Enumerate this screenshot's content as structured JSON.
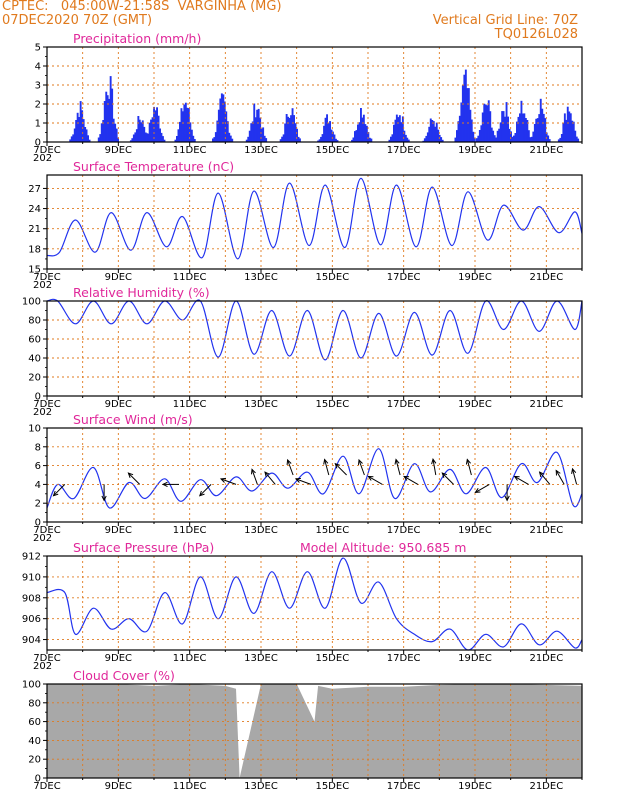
{
  "header": {
    "line1_left": "CPTEC:   045:00W-21:58S  VARGINHA (MG)",
    "line2_left": "07DEC2020 70Z (GMT)",
    "line1_right": "Vertical Grid Line: 70Z",
    "line2_right": "TQ0126L028"
  },
  "colors": {
    "series": "#2233ee",
    "title": "#e0289a",
    "header": "#e07a1e",
    "grid": "#e07a1e",
    "cloud": "#a8a8a8"
  },
  "x_dates": [
    "7DEC",
    "9DEC",
    "11DEC",
    "13DEC",
    "15DEC",
    "17DEC",
    "19DEC",
    "21DEC"
  ],
  "x_axis_label": "",
  "x_axis_stub": "202",
  "chart_data": [
    {
      "id": "precip",
      "type": "bar",
      "title": "Precipitation (mm/h)",
      "ylim": [
        0,
        5
      ],
      "yticks": [
        0,
        1,
        2,
        3,
        4,
        5
      ],
      "x_days": [
        0,
        15
      ],
      "note": "hourly bars; values estimated from figure",
      "episodes": [
        {
          "day": 0.9,
          "peak": 2.3
        },
        {
          "day": 1.7,
          "peak": 4.0
        },
        {
          "day": 2.6,
          "peak": 1.6
        },
        {
          "day": 3.0,
          "peak": 2.3
        },
        {
          "day": 3.85,
          "peak": 2.7
        },
        {
          "day": 4.9,
          "peak": 2.7
        },
        {
          "day": 5.85,
          "peak": 2.4
        },
        {
          "day": 6.8,
          "peak": 2.3
        },
        {
          "day": 7.85,
          "peak": 1.6
        },
        {
          "day": 8.8,
          "peak": 2.2
        },
        {
          "day": 9.85,
          "peak": 2.0
        },
        {
          "day": 10.8,
          "peak": 1.5
        },
        {
          "day": 11.7,
          "peak": 4.0
        },
        {
          "day": 12.3,
          "peak": 2.6
        },
        {
          "day": 12.8,
          "peak": 2.4
        },
        {
          "day": 13.3,
          "peak": 2.4
        },
        {
          "day": 13.8,
          "peak": 2.6
        },
        {
          "day": 14.6,
          "peak": 2.4
        }
      ]
    },
    {
      "id": "temp",
      "type": "line",
      "title": "Surface Temperature (nC)",
      "ylim": [
        15,
        29
      ],
      "yticks": [
        15,
        18,
        21,
        24,
        27
      ],
      "x": [
        0,
        0.35,
        0.8,
        1.35,
        1.8,
        2.35,
        2.8,
        3.35,
        3.8,
        4.35,
        4.8,
        5.35,
        5.8,
        6.35,
        6.8,
        7.35,
        7.8,
        8.35,
        8.8,
        9.35,
        9.8,
        10.35,
        10.8,
        11.35,
        11.8,
        12.35,
        12.8,
        13.35,
        13.8,
        14.35,
        14.8,
        15
      ],
      "values": [
        17,
        17.5,
        22.3,
        17.5,
        23.4,
        17.8,
        23.4,
        18.3,
        22.8,
        16.7,
        26.3,
        16.5,
        26.6,
        18.2,
        27.8,
        18.5,
        27.5,
        18.2,
        28.5,
        18.6,
        27.5,
        18.3,
        27.2,
        18.5,
        26.5,
        19.3,
        24.5,
        20.8,
        24.3,
        20.4,
        23.5,
        20.3
      ]
    },
    {
      "id": "rh",
      "type": "line",
      "title": "Relative Humidity (%)",
      "ylim": [
        0,
        100
      ],
      "yticks": [
        0,
        20,
        40,
        60,
        80,
        100
      ],
      "x": [
        0,
        0.3,
        0.8,
        1.3,
        1.8,
        2.3,
        2.8,
        3.3,
        3.8,
        4.3,
        4.8,
        5.3,
        5.8,
        6.3,
        6.8,
        7.3,
        7.8,
        8.3,
        8.8,
        9.3,
        9.8,
        10.3,
        10.8,
        11.3,
        11.8,
        12.3,
        12.8,
        13.3,
        13.8,
        14.3,
        14.8,
        15
      ],
      "values": [
        100,
        100,
        76,
        100,
        76,
        100,
        76,
        100,
        80,
        100,
        41,
        100,
        44,
        90,
        42,
        90,
        38,
        90,
        40,
        87,
        42,
        88,
        43,
        90,
        45,
        100,
        70,
        100,
        68,
        100,
        70,
        100
      ]
    },
    {
      "id": "wind",
      "type": "line",
      "title": "Surface Wind (m/s)",
      "ylim": [
        0,
        10
      ],
      "yticks": [
        0,
        2,
        4,
        6,
        8,
        10
      ],
      "x": [
        0,
        0.3,
        0.75,
        1.3,
        1.75,
        2.3,
        2.75,
        3.3,
        3.75,
        4.3,
        4.75,
        5.3,
        5.75,
        6.3,
        6.75,
        7.3,
        7.75,
        8.3,
        8.75,
        9.3,
        9.75,
        10.3,
        10.75,
        11.3,
        11.75,
        12.3,
        12.75,
        13.3,
        13.75,
        14.3,
        14.75,
        15
      ],
      "values": [
        1.5,
        4,
        2.5,
        5.8,
        1.5,
        4.2,
        2.5,
        4.6,
        2.2,
        4.5,
        2.8,
        4.8,
        3.3,
        5.2,
        3.6,
        5.3,
        3.0,
        7.0,
        3.0,
        7.8,
        2.5,
        6.2,
        3.2,
        5.6,
        3.0,
        5.8,
        2.6,
        6.2,
        4.2,
        7.4,
        1.8,
        3.0
      ],
      "arrows": [
        {
          "day": 0.5,
          "angle": 135,
          "len": 4
        },
        {
          "day": 1.6,
          "angle": 90,
          "len": 4
        },
        {
          "day": 2.6,
          "angle": 225,
          "len": 4
        },
        {
          "day": 3.7,
          "angle": 180,
          "len": 4
        },
        {
          "day": 4.6,
          "angle": 135,
          "len": 4
        },
        {
          "day": 5.3,
          "angle": 200,
          "len": 4
        },
        {
          "day": 5.9,
          "angle": 250,
          "len": 4
        },
        {
          "day": 6.4,
          "angle": 230,
          "len": 4
        },
        {
          "day": 6.9,
          "angle": 250,
          "len": 5
        },
        {
          "day": 7.4,
          "angle": 200,
          "len": 4
        },
        {
          "day": 7.9,
          "angle": 255,
          "len": 5
        },
        {
          "day": 8.4,
          "angle": 225,
          "len": 5
        },
        {
          "day": 8.9,
          "angle": 250,
          "len": 5
        },
        {
          "day": 9.4,
          "angle": 210,
          "len": 4
        },
        {
          "day": 9.9,
          "angle": 255,
          "len": 5
        },
        {
          "day": 10.4,
          "angle": 210,
          "len": 4
        },
        {
          "day": 10.9,
          "angle": 260,
          "len": 5
        },
        {
          "day": 11.4,
          "angle": 225,
          "len": 4
        },
        {
          "day": 11.9,
          "angle": 255,
          "len": 5
        },
        {
          "day": 12.4,
          "angle": 150,
          "len": 4
        },
        {
          "day": 12.9,
          "angle": 90,
          "len": 4
        },
        {
          "day": 13.5,
          "angle": 210,
          "len": 4
        },
        {
          "day": 14.1,
          "angle": 230,
          "len": 4
        },
        {
          "day": 14.5,
          "angle": 240,
          "len": 4
        },
        {
          "day": 14.85,
          "angle": 255,
          "len": 4
        }
      ]
    },
    {
      "id": "pressure",
      "type": "line",
      "title": "Surface Pressure (hPa)",
      "annotation": "Model Altitude: 950.685 m",
      "ylim": [
        903,
        912
      ],
      "yticks": [
        904,
        906,
        908,
        910,
        912
      ],
      "x": [
        0,
        0.5,
        0.8,
        1.3,
        1.8,
        2.3,
        2.8,
        3.3,
        3.8,
        4.3,
        4.8,
        5.3,
        5.8,
        6.3,
        6.8,
        7.3,
        7.8,
        8.3,
        8.8,
        9.3,
        9.8,
        10.3,
        10.8,
        11.3,
        11.8,
        12.3,
        12.8,
        13.3,
        13.8,
        14.3,
        14.8,
        15
      ],
      "values": [
        908.5,
        908.5,
        904.5,
        907,
        905,
        906,
        904.8,
        908.5,
        905.5,
        910,
        906,
        910,
        906.5,
        910.5,
        907,
        910.5,
        907,
        911.8,
        907.5,
        909.5,
        906,
        904.5,
        903.8,
        905,
        903,
        904.5,
        903.3,
        905.5,
        903.5,
        904.8,
        903.2,
        904
      ]
    },
    {
      "id": "cloud",
      "type": "area",
      "title": "Cloud Cover (%)",
      "ylim": [
        0,
        100
      ],
      "yticks": [
        0,
        20,
        40,
        60,
        80,
        100
      ],
      "x": [
        0,
        1,
        2,
        3,
        4,
        5,
        5.3,
        5.4,
        6,
        7,
        7.5,
        7.6,
        8,
        9,
        10,
        11,
        12,
        13,
        14,
        15
      ],
      "values": [
        100,
        100,
        100,
        98,
        100,
        98,
        95,
        0,
        100,
        100,
        60,
        98,
        95,
        97,
        97,
        99,
        100,
        100,
        99,
        98
      ]
    }
  ]
}
